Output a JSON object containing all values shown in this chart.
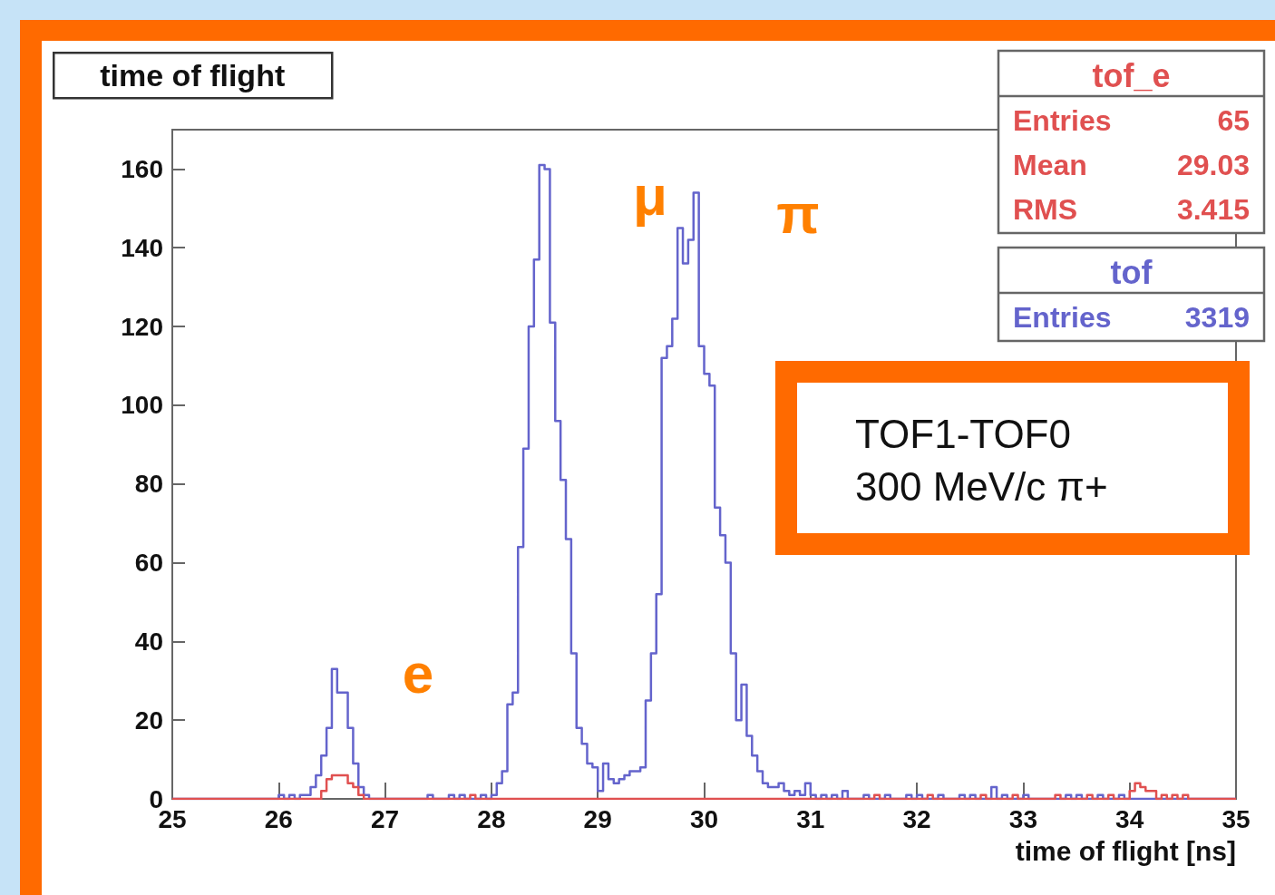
{
  "chart_data": {
    "type": "histogram",
    "title": "time of flight",
    "xlabel": "time of flight [ns]",
    "bins": [
      25,
      25.05,
      25.1,
      25.15,
      25.2,
      25.25,
      25.3,
      25.35,
      25.4,
      25.45,
      25.5,
      25.55,
      25.6,
      25.65,
      25.7,
      25.75,
      25.8,
      25.85,
      25.9,
      25.95,
      26,
      26.05,
      26.1,
      26.15,
      26.2,
      26.25,
      26.3,
      26.35,
      26.4,
      26.45,
      26.5,
      26.55,
      26.6,
      26.65,
      26.7,
      26.75,
      26.8,
      26.85,
      26.9,
      26.95,
      27,
      27.05,
      27.1,
      27.15,
      27.2,
      27.25,
      27.3,
      27.35,
      27.4,
      27.45,
      27.5,
      27.55,
      27.6,
      27.65,
      27.7,
      27.75,
      27.8,
      27.85,
      27.9,
      27.95,
      28,
      28.05,
      28.1,
      28.15,
      28.2,
      28.25,
      28.3,
      28.35,
      28.4,
      28.45,
      28.5,
      28.55,
      28.6,
      28.65,
      28.7,
      28.75,
      28.8,
      28.85,
      28.9,
      28.95,
      29,
      29.05,
      29.1,
      29.15,
      29.2,
      29.25,
      29.3,
      29.35,
      29.4,
      29.45,
      29.5,
      29.55,
      29.6,
      29.65,
      29.7,
      29.75,
      29.8,
      29.85,
      29.9,
      29.95,
      30,
      30.05,
      30.1,
      30.15,
      30.2,
      30.25,
      30.3,
      30.35,
      30.4,
      30.45,
      30.5,
      30.55,
      30.6,
      30.65,
      30.7,
      30.75,
      30.8,
      30.85,
      30.9,
      30.95,
      31,
      31.05,
      31.1,
      31.15,
      31.2,
      31.25,
      31.3,
      31.35,
      31.4,
      31.45,
      31.5,
      31.55,
      31.6,
      31.65,
      31.7,
      31.75,
      31.8,
      31.85,
      31.9,
      31.95,
      32,
      32.05,
      32.1,
      32.15,
      32.2,
      32.25,
      32.3,
      32.35,
      32.4,
      32.45,
      32.5,
      32.55,
      32.6,
      32.65,
      32.7,
      32.75,
      32.8,
      32.85,
      32.9,
      32.95,
      33,
      33.05,
      33.1,
      33.15,
      33.2,
      33.25,
      33.3,
      33.35,
      33.4,
      33.45,
      33.5,
      33.55,
      33.6,
      33.65,
      33.7,
      33.75,
      33.8,
      33.85,
      33.9,
      33.95,
      34,
      34.05,
      34.1,
      34.15,
      34.2,
      34.25,
      34.3,
      34.35,
      34.4,
      34.45,
      34.5,
      34.55,
      34.6,
      34.65,
      34.7,
      34.75,
      34.8,
      34.85,
      34.9,
      34.95,
      35
    ],
    "series": [
      {
        "name": "tof_e",
        "color": "#e05050",
        "values": [
          0,
          0,
          0,
          0,
          0,
          0,
          0,
          0,
          0,
          0,
          0,
          0,
          0,
          0,
          0,
          0,
          0,
          0,
          0,
          0,
          0,
          0,
          0,
          0,
          0,
          0,
          0,
          0,
          2,
          5,
          6,
          6,
          6,
          4,
          3,
          1,
          0,
          0,
          0,
          0,
          0,
          0,
          0,
          0,
          0,
          0,
          0,
          0,
          0,
          0,
          0,
          0,
          0,
          0,
          0,
          0,
          1,
          0,
          0,
          0,
          0,
          0,
          0,
          0,
          0,
          0,
          0,
          0,
          0,
          0,
          0,
          0,
          0,
          0,
          0,
          0,
          0,
          0,
          0,
          0,
          0,
          0,
          0,
          0,
          0,
          0,
          0,
          0,
          0,
          0,
          0,
          0,
          0,
          0,
          0,
          0,
          0,
          0,
          0,
          0,
          0,
          0,
          0,
          0,
          0,
          0,
          0,
          0,
          0,
          0,
          0,
          0,
          0,
          0,
          0,
          0,
          0,
          0,
          0,
          0,
          0,
          0,
          0,
          0,
          0,
          0,
          0,
          0,
          0,
          0,
          0,
          0,
          1,
          0,
          0,
          0,
          0,
          0,
          0,
          0,
          0,
          0,
          1,
          0,
          0,
          0,
          0,
          0,
          0,
          0,
          0,
          0,
          1,
          0,
          0,
          0,
          0,
          0,
          1,
          0,
          0,
          0,
          0,
          0,
          0,
          0,
          1,
          0,
          0,
          0,
          0,
          0,
          1,
          0,
          0,
          0,
          1,
          0,
          0,
          0,
          2,
          4,
          3,
          2,
          2,
          0,
          1,
          0,
          1,
          0,
          1,
          0,
          0,
          0,
          0,
          0,
          0,
          0,
          0,
          0
        ]
      },
      {
        "name": "tof",
        "color": "#6464cc",
        "values": [
          0,
          0,
          0,
          0,
          0,
          0,
          0,
          0,
          0,
          0,
          0,
          0,
          0,
          0,
          0,
          0,
          0,
          0,
          0,
          0,
          1,
          0,
          1,
          0,
          1,
          1,
          3,
          6,
          11,
          18,
          33,
          27,
          27,
          18,
          9,
          3,
          1,
          0,
          0,
          0,
          0,
          0,
          0,
          0,
          0,
          0,
          0,
          0,
          1,
          0,
          0,
          0,
          1,
          0,
          1,
          0,
          0,
          0,
          1,
          0,
          1,
          4,
          7,
          24,
          27,
          64,
          89,
          120,
          137,
          161,
          160,
          121,
          96,
          81,
          66,
          37,
          18,
          14,
          9,
          8,
          2,
          9,
          5,
          4,
          5,
          6,
          7,
          7,
          8,
          25,
          37,
          52,
          112,
          115,
          122,
          145,
          136,
          142,
          154,
          115,
          108,
          105,
          74,
          67,
          60,
          37,
          20,
          29,
          16,
          11,
          7,
          4,
          3,
          3,
          4,
          2,
          1,
          2,
          1,
          4,
          1,
          0,
          1,
          0,
          1,
          0,
          2,
          0,
          0,
          0,
          1,
          0,
          0,
          0,
          1,
          0,
          0,
          0,
          1,
          0,
          1,
          0,
          0,
          0,
          1,
          0,
          0,
          0,
          1,
          0,
          1,
          0,
          0,
          0,
          3,
          0,
          1,
          0,
          0,
          0,
          1,
          0,
          0,
          0,
          0,
          0,
          0,
          0,
          1,
          0,
          1,
          0,
          0,
          0,
          1,
          0,
          0,
          0,
          1,
          0,
          0,
          0,
          0,
          0,
          0,
          0,
          0,
          0,
          0,
          0,
          0,
          0,
          0,
          0,
          0,
          0,
          0,
          0,
          0,
          0
        ]
      }
    ],
    "xlim": [
      25,
      35
    ],
    "xticks": [
      25,
      26,
      27,
      28,
      29,
      30,
      31,
      32,
      33,
      34,
      35
    ],
    "ylim": [
      0,
      170
    ],
    "yticks": [
      0,
      20,
      40,
      60,
      80,
      100,
      120,
      140,
      160
    ],
    "grid": false,
    "legend": "top right",
    "marker": "none",
    "annotations": [
      "Entries 65",
      "Mean 29.03",
      "RMS 3.415",
      "Entries 3319",
      "TOF1-TOF0\n300 MeV/c π+",
      "e",
      "μ",
      "π"
    ]
  }
}
